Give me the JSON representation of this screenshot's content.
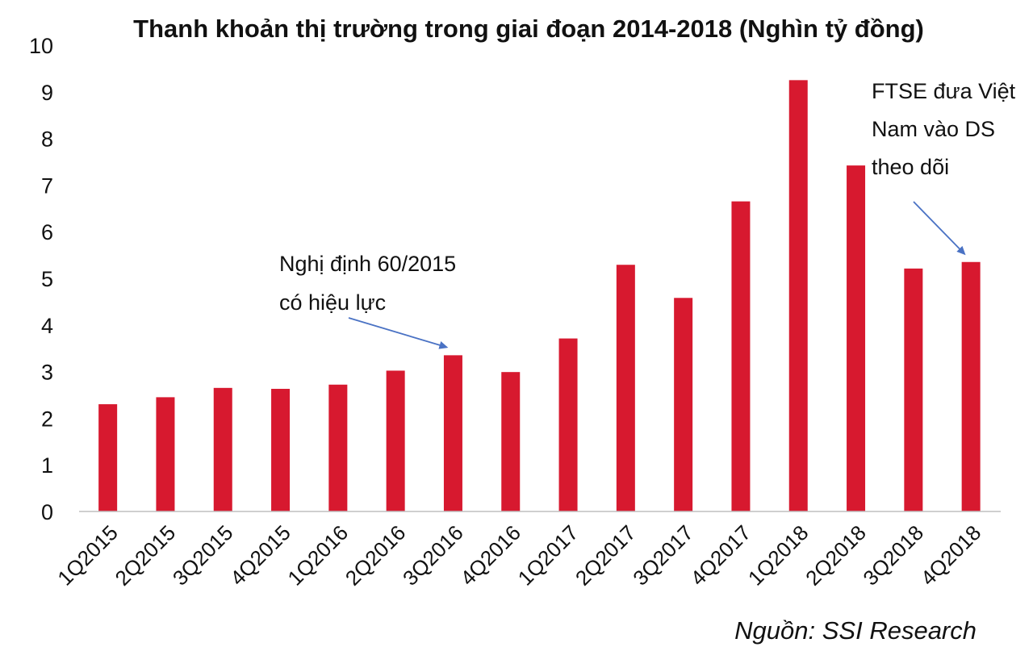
{
  "chart_data": {
    "type": "bar",
    "title": "Thanh khoản thị trường trong giai đoạn 2014-2018 (Nghìn tỷ đồng)",
    "categories": [
      "1Q2015",
      "2Q2015",
      "3Q2015",
      "4Q2015",
      "1Q2016",
      "2Q2016",
      "3Q2016",
      "4Q2016",
      "1Q2017",
      "2Q2017",
      "3Q2017",
      "4Q2017",
      "1Q2018",
      "2Q2018",
      "3Q2018",
      "4Q2018"
    ],
    "values": [
      2.3,
      2.45,
      2.65,
      2.63,
      2.72,
      3.02,
      3.35,
      2.99,
      3.71,
      5.29,
      4.58,
      6.65,
      9.25,
      7.42,
      5.21,
      5.35
    ],
    "ylim": [
      0,
      10
    ],
    "yticks": [
      "0",
      "1",
      "2",
      "3",
      "4",
      "5",
      "6",
      "7",
      "8",
      "9",
      "10"
    ],
    "xlabel": "",
    "ylabel": "",
    "bar_color": "#D7192F",
    "grid": false,
    "annotations": [
      {
        "name": "nghi-dinh",
        "lines": [
          "Nghị định 60/2015",
          "có hiệu lực"
        ],
        "points_to": "3Q2016"
      },
      {
        "name": "ftse",
        "lines": [
          "FTSE đưa Việt",
          "Nam vào DS",
          "theo dõi"
        ],
        "points_to": "4Q2018"
      }
    ],
    "arrow_color": "#4A72C4",
    "source": "Nguồn: SSI Research"
  }
}
